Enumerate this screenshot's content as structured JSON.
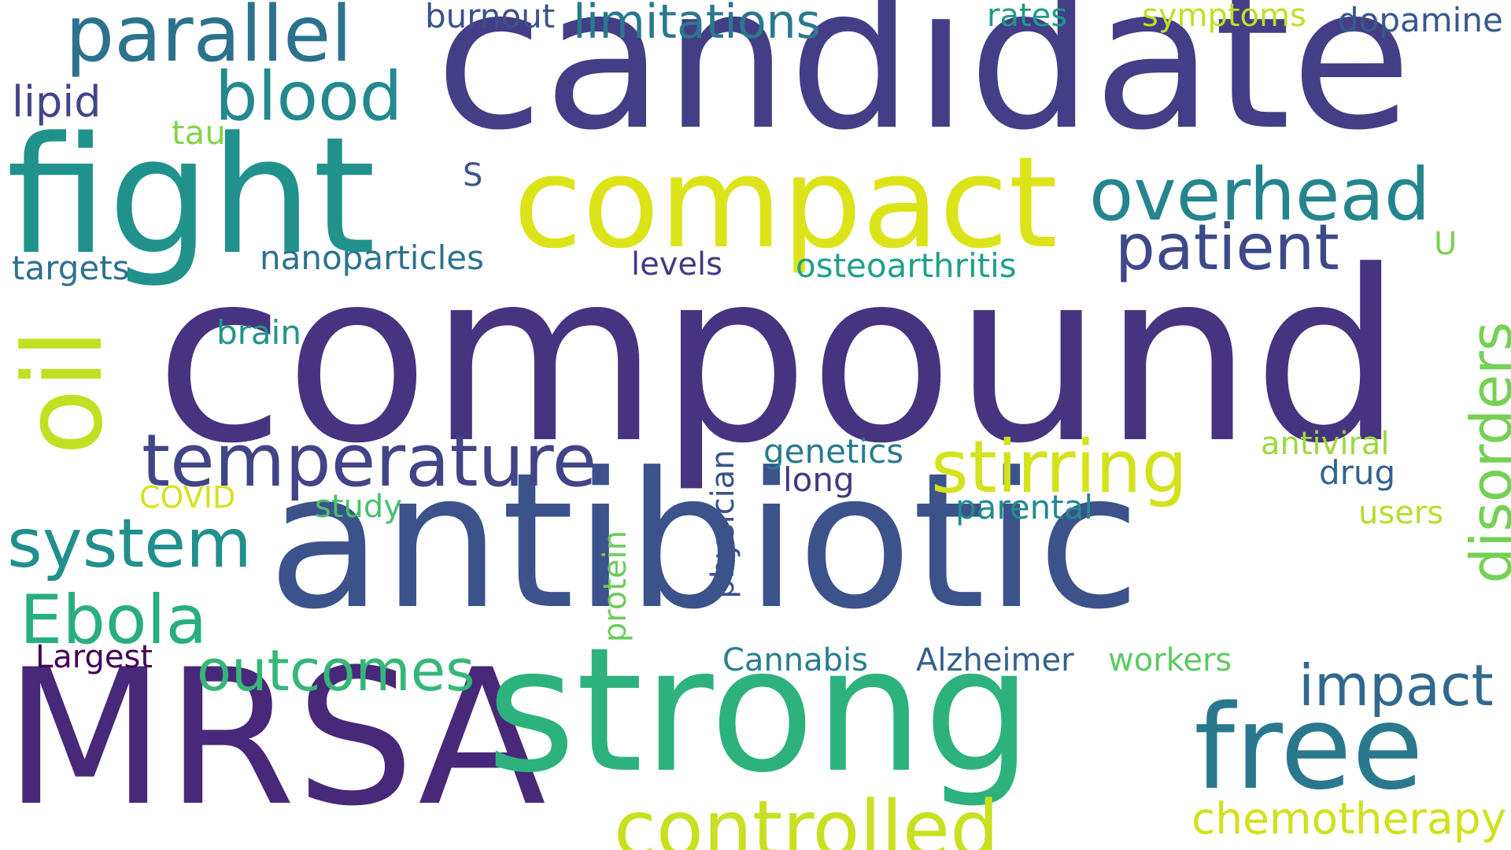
{
  "words": [
    {
      "text": "compound",
      "color": "#463480"
    },
    {
      "text": "candidate",
      "color": "#433e85"
    },
    {
      "text": "antibiotic",
      "color": "#3b528b"
    },
    {
      "text": "MRSA",
      "color": "#482878"
    },
    {
      "text": "strong",
      "color": "#2db27d"
    },
    {
      "text": "fight",
      "color": "#21918c"
    },
    {
      "text": "compact",
      "color": "#dce319"
    },
    {
      "text": "oil",
      "color": "#c2df23"
    },
    {
      "text": "free",
      "color": "#2a788e"
    },
    {
      "text": "controlled",
      "color": "#c8e020"
    },
    {
      "text": "parallel",
      "color": "#2c728e"
    },
    {
      "text": "overhead",
      "color": "#25858e"
    },
    {
      "text": "temperature",
      "color": "#414487"
    },
    {
      "text": "disorders",
      "color": "#75d054"
    },
    {
      "text": "stirring",
      "color": "#d2e21b"
    },
    {
      "text": "patient",
      "color": "#3e4989"
    },
    {
      "text": "blood",
      "color": "#23898e"
    },
    {
      "text": "system",
      "color": "#218f8d"
    },
    {
      "text": "Ebola",
      "color": "#28ae80"
    },
    {
      "text": "outcomes",
      "color": "#35b779"
    },
    {
      "text": "impact",
      "color": "#31688e"
    },
    {
      "text": "limitations",
      "color": "#2a788e"
    },
    {
      "text": "chemotherapy",
      "color": "#d0e11c"
    },
    {
      "text": "physician",
      "color": "#3b528b"
    },
    {
      "text": "protein",
      "color": "#6ccd5a"
    },
    {
      "text": "lipid",
      "color": "#404688"
    },
    {
      "text": "burnout",
      "color": "#3b528b"
    },
    {
      "text": "dopamine",
      "color": "#38598c"
    },
    {
      "text": "symptoms",
      "color": "#c0df25"
    },
    {
      "text": "rates",
      "color": "#1f9a8a"
    },
    {
      "text": "tau",
      "color": "#84d44b"
    },
    {
      "text": "S",
      "color": "#3a538b"
    },
    {
      "text": "U",
      "color": "#7ad151"
    },
    {
      "text": "targets",
      "color": "#2c718e"
    },
    {
      "text": "nanoparticles",
      "color": "#2c728e"
    },
    {
      "text": "levels",
      "color": "#443983"
    },
    {
      "text": "osteoarthritis",
      "color": "#1fa088"
    },
    {
      "text": "brain",
      "color": "#1f958b"
    },
    {
      "text": "genetics",
      "color": "#297b8e"
    },
    {
      "text": "antiviral",
      "color": "#9bd93c"
    },
    {
      "text": "long",
      "color": "#453781"
    },
    {
      "text": "drug",
      "color": "#33638d"
    },
    {
      "text": "COVID",
      "color": "#d5e21a"
    },
    {
      "text": "study",
      "color": "#4ac16d"
    },
    {
      "text": "parental",
      "color": "#238a8d"
    },
    {
      "text": "users",
      "color": "#b5de2b"
    },
    {
      "text": "Largest",
      "color": "#440154"
    },
    {
      "text": "Cannabis",
      "color": "#277f8e"
    },
    {
      "text": "Alzheimer",
      "color": "#355f8d"
    },
    {
      "text": "workers",
      "color": "#5ec962"
    }
  ]
}
